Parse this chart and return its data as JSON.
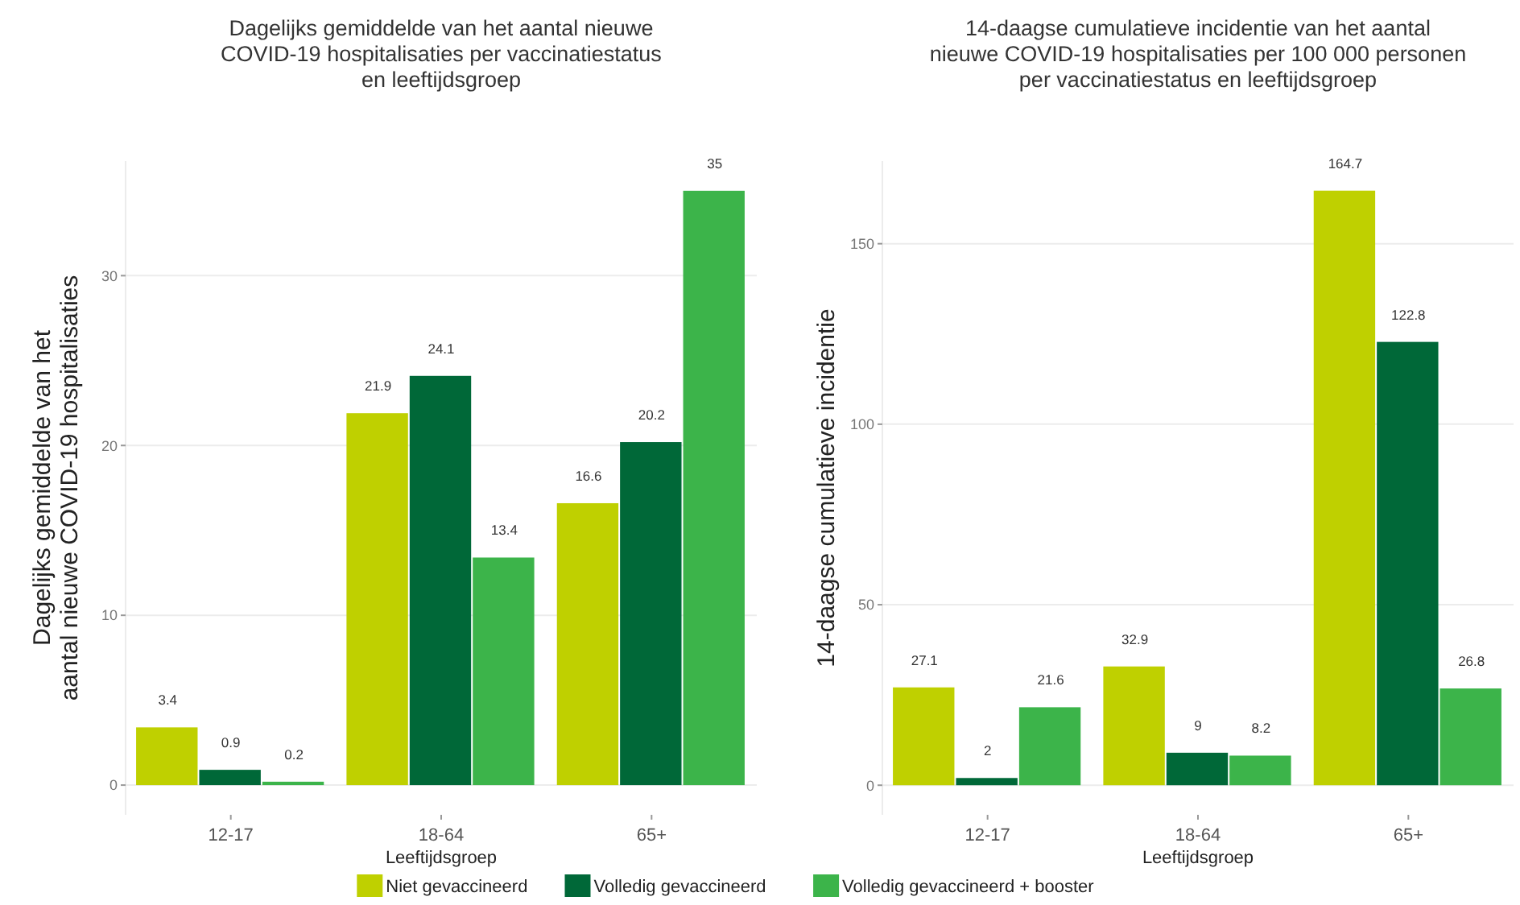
{
  "chart_data": [
    {
      "type": "bar",
      "title": "Dagelijks gemiddelde van het aantal nieuwe\nCOVID-19 hospitalisaties per vaccinatiestatus\nen leeftijdsgroep",
      "xlabel": "Leeftijdsgroep",
      "ylabel": "Dagelijks gemiddelde van het\naantal nieuwe COVID-19 hospitalisaties",
      "categories": [
        "12-17",
        "18-64",
        "65+"
      ],
      "series": [
        {
          "name": "Niet gevaccineerd",
          "color": "#bfd000",
          "values": [
            3.4,
            21.9,
            16.6
          ]
        },
        {
          "name": "Volledig gevaccineerd",
          "color": "#006838",
          "values": [
            0.9,
            24.1,
            20.2
          ]
        },
        {
          "name": "Volledig gevaccineerd + booster",
          "color": "#3cb44a",
          "values": [
            0.2,
            13.4,
            35
          ]
        }
      ],
      "ylim": [
        -1.75,
        36.75
      ],
      "yticks": [
        0,
        10,
        20,
        30
      ],
      "grid": "y",
      "legend": "bottom",
      "data_labels": true
    },
    {
      "type": "bar",
      "title": "14-daagse cumulatieve incidentie van het aantal\nnieuwe COVID-19 hospitalisaties per 100 000 personen\nper vaccinatiestatus en leeftijdsgroep",
      "xlabel": "Leeftijdsgroep",
      "ylabel": "14-daagse cumulatieve incidentie",
      "categories": [
        "12-17",
        "18-64",
        "65+"
      ],
      "series": [
        {
          "color": "#bfd000",
          "values": [
            27.1,
            32.9,
            164.7
          ]
        },
        {
          "color": "#006838",
          "values": [
            2,
            9,
            122.8
          ]
        },
        {
          "color": "#3cb44a",
          "values": [
            21.6,
            8.2,
            26.8
          ]
        }
      ],
      "ylim": [
        -8.2,
        172.9
      ],
      "yticks": [
        0,
        50,
        100,
        150
      ],
      "grid": "y",
      "data_labels": true
    }
  ]
}
